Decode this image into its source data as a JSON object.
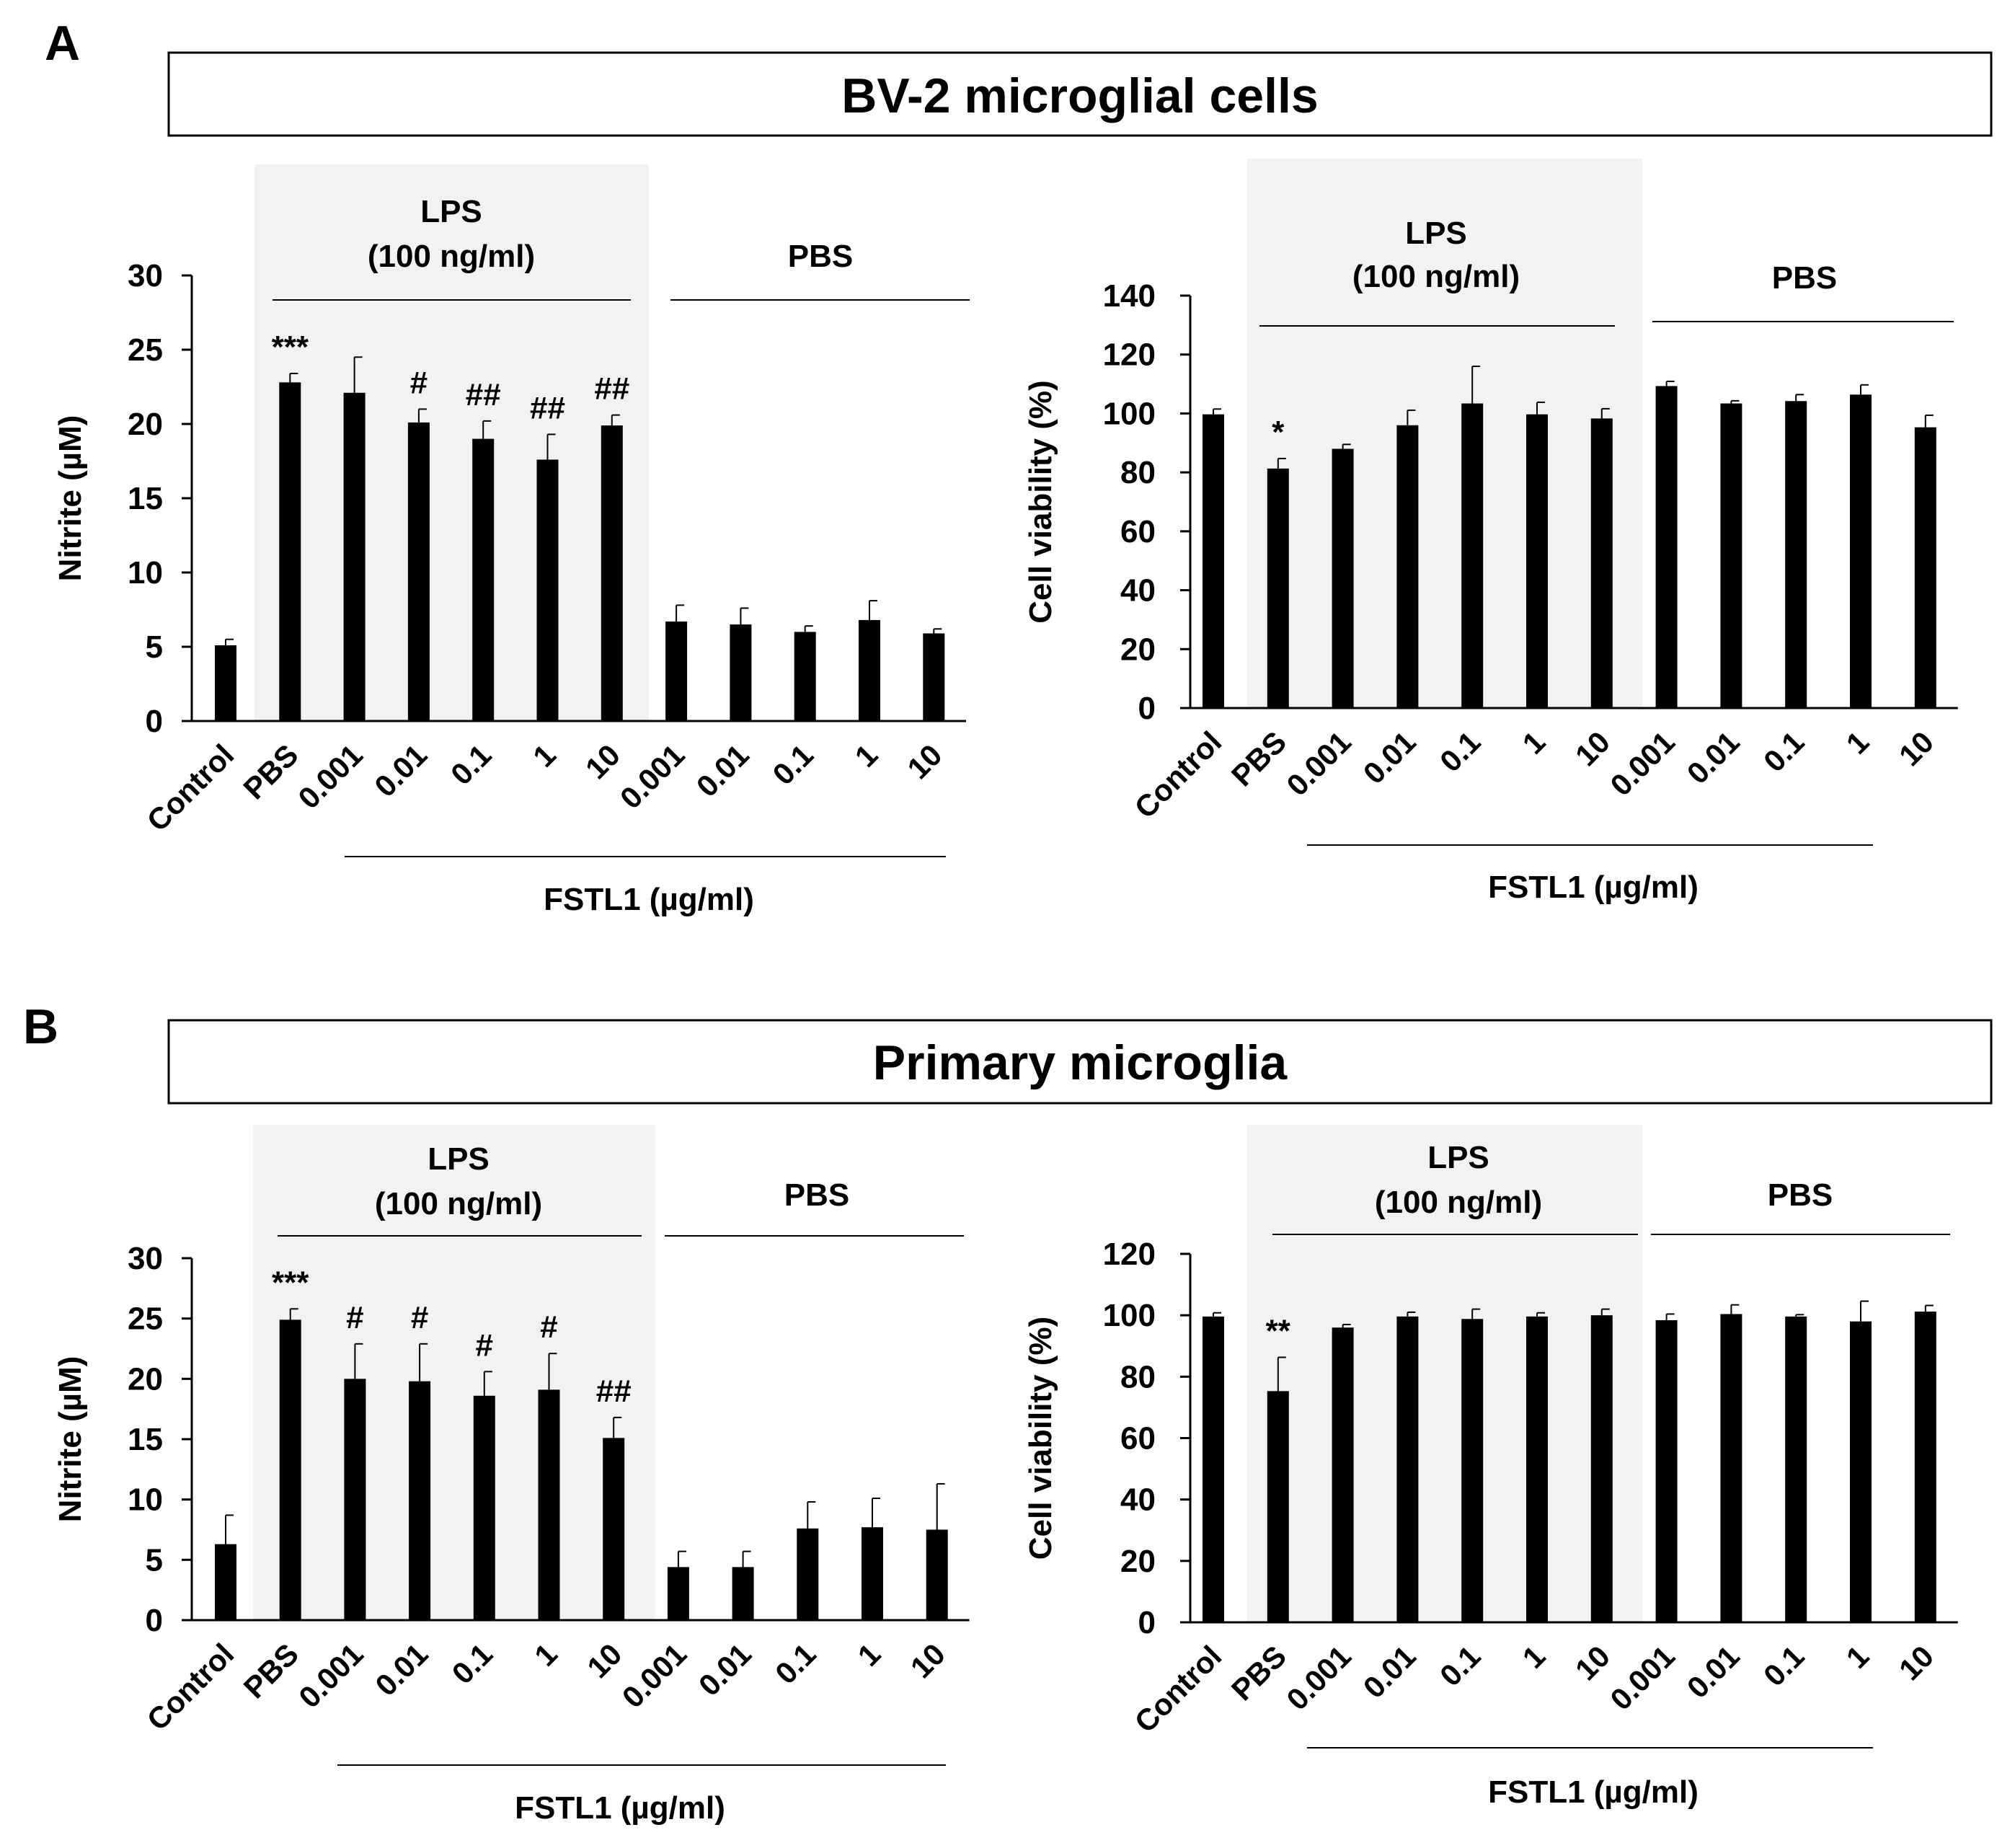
{
  "figure": {
    "panels": [
      {
        "letter": "A",
        "title": "BV-2 microglial cells"
      },
      {
        "letter": "B",
        "title": "Primary microglia"
      }
    ]
  },
  "common": {
    "categories": [
      "Control",
      "PBS",
      "0.001",
      "0.01",
      "0.1",
      "1",
      "10",
      "0.001",
      "0.01",
      "0.1",
      "1",
      "10"
    ],
    "lps_label_line1": "LPS",
    "lps_label_line2": "(100 ng/ml)",
    "pbs_label": "PBS",
    "fstl1_label": "FSTL1 (µg/ml)"
  },
  "chart_data": [
    {
      "type": "bar",
      "panel": "A",
      "position": "left",
      "title": "BV-2 microglial cells",
      "xlabel": "FSTL1 (µg/ml)",
      "ylabel": "Nitrite (µM)",
      "ylim": [
        0,
        30
      ],
      "yticks": [
        0,
        5,
        10,
        15,
        20,
        25,
        30
      ],
      "categories": [
        "Control",
        "PBS",
        "0.001",
        "0.01",
        "0.1",
        "1",
        "10",
        "0.001",
        "0.01",
        "0.1",
        "1",
        "10"
      ],
      "values": [
        5.1,
        22.8,
        22.1,
        20.1,
        19.0,
        17.6,
        19.9,
        6.7,
        6.5,
        6.0,
        6.8,
        5.9
      ],
      "errors": [
        0.4,
        0.6,
        2.4,
        0.9,
        1.2,
        1.7,
        0.7,
        1.1,
        1.1,
        0.4,
        1.3,
        0.3
      ],
      "annotations": [
        "",
        "***",
        "",
        "#",
        "##",
        "##",
        "##",
        "",
        "",
        "",
        "",
        ""
      ]
    },
    {
      "type": "bar",
      "panel": "A",
      "position": "right",
      "title": "BV-2 microglial cells",
      "xlabel": "FSTL1 (µg/ml)",
      "ylabel": "Cell viability (%)",
      "ylim": [
        0,
        140
      ],
      "yticks": [
        0,
        20,
        40,
        60,
        80,
        100,
        120,
        140
      ],
      "categories": [
        "Control",
        "PBS",
        "0.001",
        "0.01",
        "0.1",
        "1",
        "10",
        "0.001",
        "0.01",
        "0.1",
        "1",
        "10"
      ],
      "values": [
        99.7,
        81.3,
        88.0,
        96.0,
        103.4,
        99.7,
        98.3,
        109.3,
        103.4,
        104.2,
        106.4,
        95.3
      ],
      "errors": [
        1.8,
        3.4,
        1.5,
        5.1,
        12.6,
        4.1,
        3.3,
        1.6,
        0.9,
        2.2,
        3.3,
        4.1
      ],
      "annotations": [
        "",
        "*",
        "",
        "",
        "",
        "",
        "",
        "",
        "",
        "",
        "",
        ""
      ]
    },
    {
      "type": "bar",
      "panel": "B",
      "position": "left",
      "title": "Primary microglia",
      "xlabel": "FSTL1 (µg/ml)",
      "ylabel": "Nitrite (µM)",
      "ylim": [
        0,
        30
      ],
      "yticks": [
        0,
        5,
        10,
        15,
        20,
        25,
        30
      ],
      "categories": [
        "Control",
        "PBS",
        "0.001",
        "0.01",
        "0.1",
        "1",
        "10",
        "0.001",
        "0.01",
        "0.1",
        "1",
        "10"
      ],
      "values": [
        6.3,
        24.9,
        20.0,
        19.8,
        18.6,
        19.1,
        15.1,
        4.4,
        4.4,
        7.6,
        7.7,
        7.5
      ],
      "errors": [
        2.4,
        0.9,
        2.9,
        3.1,
        2.0,
        3.0,
        1.7,
        1.3,
        1.3,
        2.2,
        2.4,
        3.8
      ],
      "annotations": [
        "",
        "***",
        "#",
        "#",
        "#",
        "#",
        "##",
        "",
        "",
        "",
        "",
        ""
      ]
    },
    {
      "type": "bar",
      "panel": "B",
      "position": "right",
      "title": "Primary microglia",
      "xlabel": "FSTL1 (µg/ml)",
      "ylabel": "Cell viability (%)",
      "ylim": [
        0,
        120
      ],
      "yticks": [
        0,
        20,
        40,
        60,
        80,
        100,
        120
      ],
      "categories": [
        "Control",
        "PBS",
        "0.001",
        "0.01",
        "0.1",
        "1",
        "10",
        "0.001",
        "0.01",
        "0.1",
        "1",
        "10"
      ],
      "values": [
        99.6,
        75.3,
        96.0,
        99.6,
        98.8,
        99.6,
        100.0,
        98.4,
        100.4,
        99.6,
        98.0,
        101.2
      ],
      "errors": [
        1.2,
        11.0,
        1.0,
        1.4,
        3.2,
        1.2,
        2.0,
        2.0,
        3.0,
        0.6,
        6.6,
        2.0
      ],
      "annotations": [
        "",
        "**",
        "",
        "",
        "",
        "",
        "",
        "",
        "",
        "",
        "",
        ""
      ]
    }
  ]
}
